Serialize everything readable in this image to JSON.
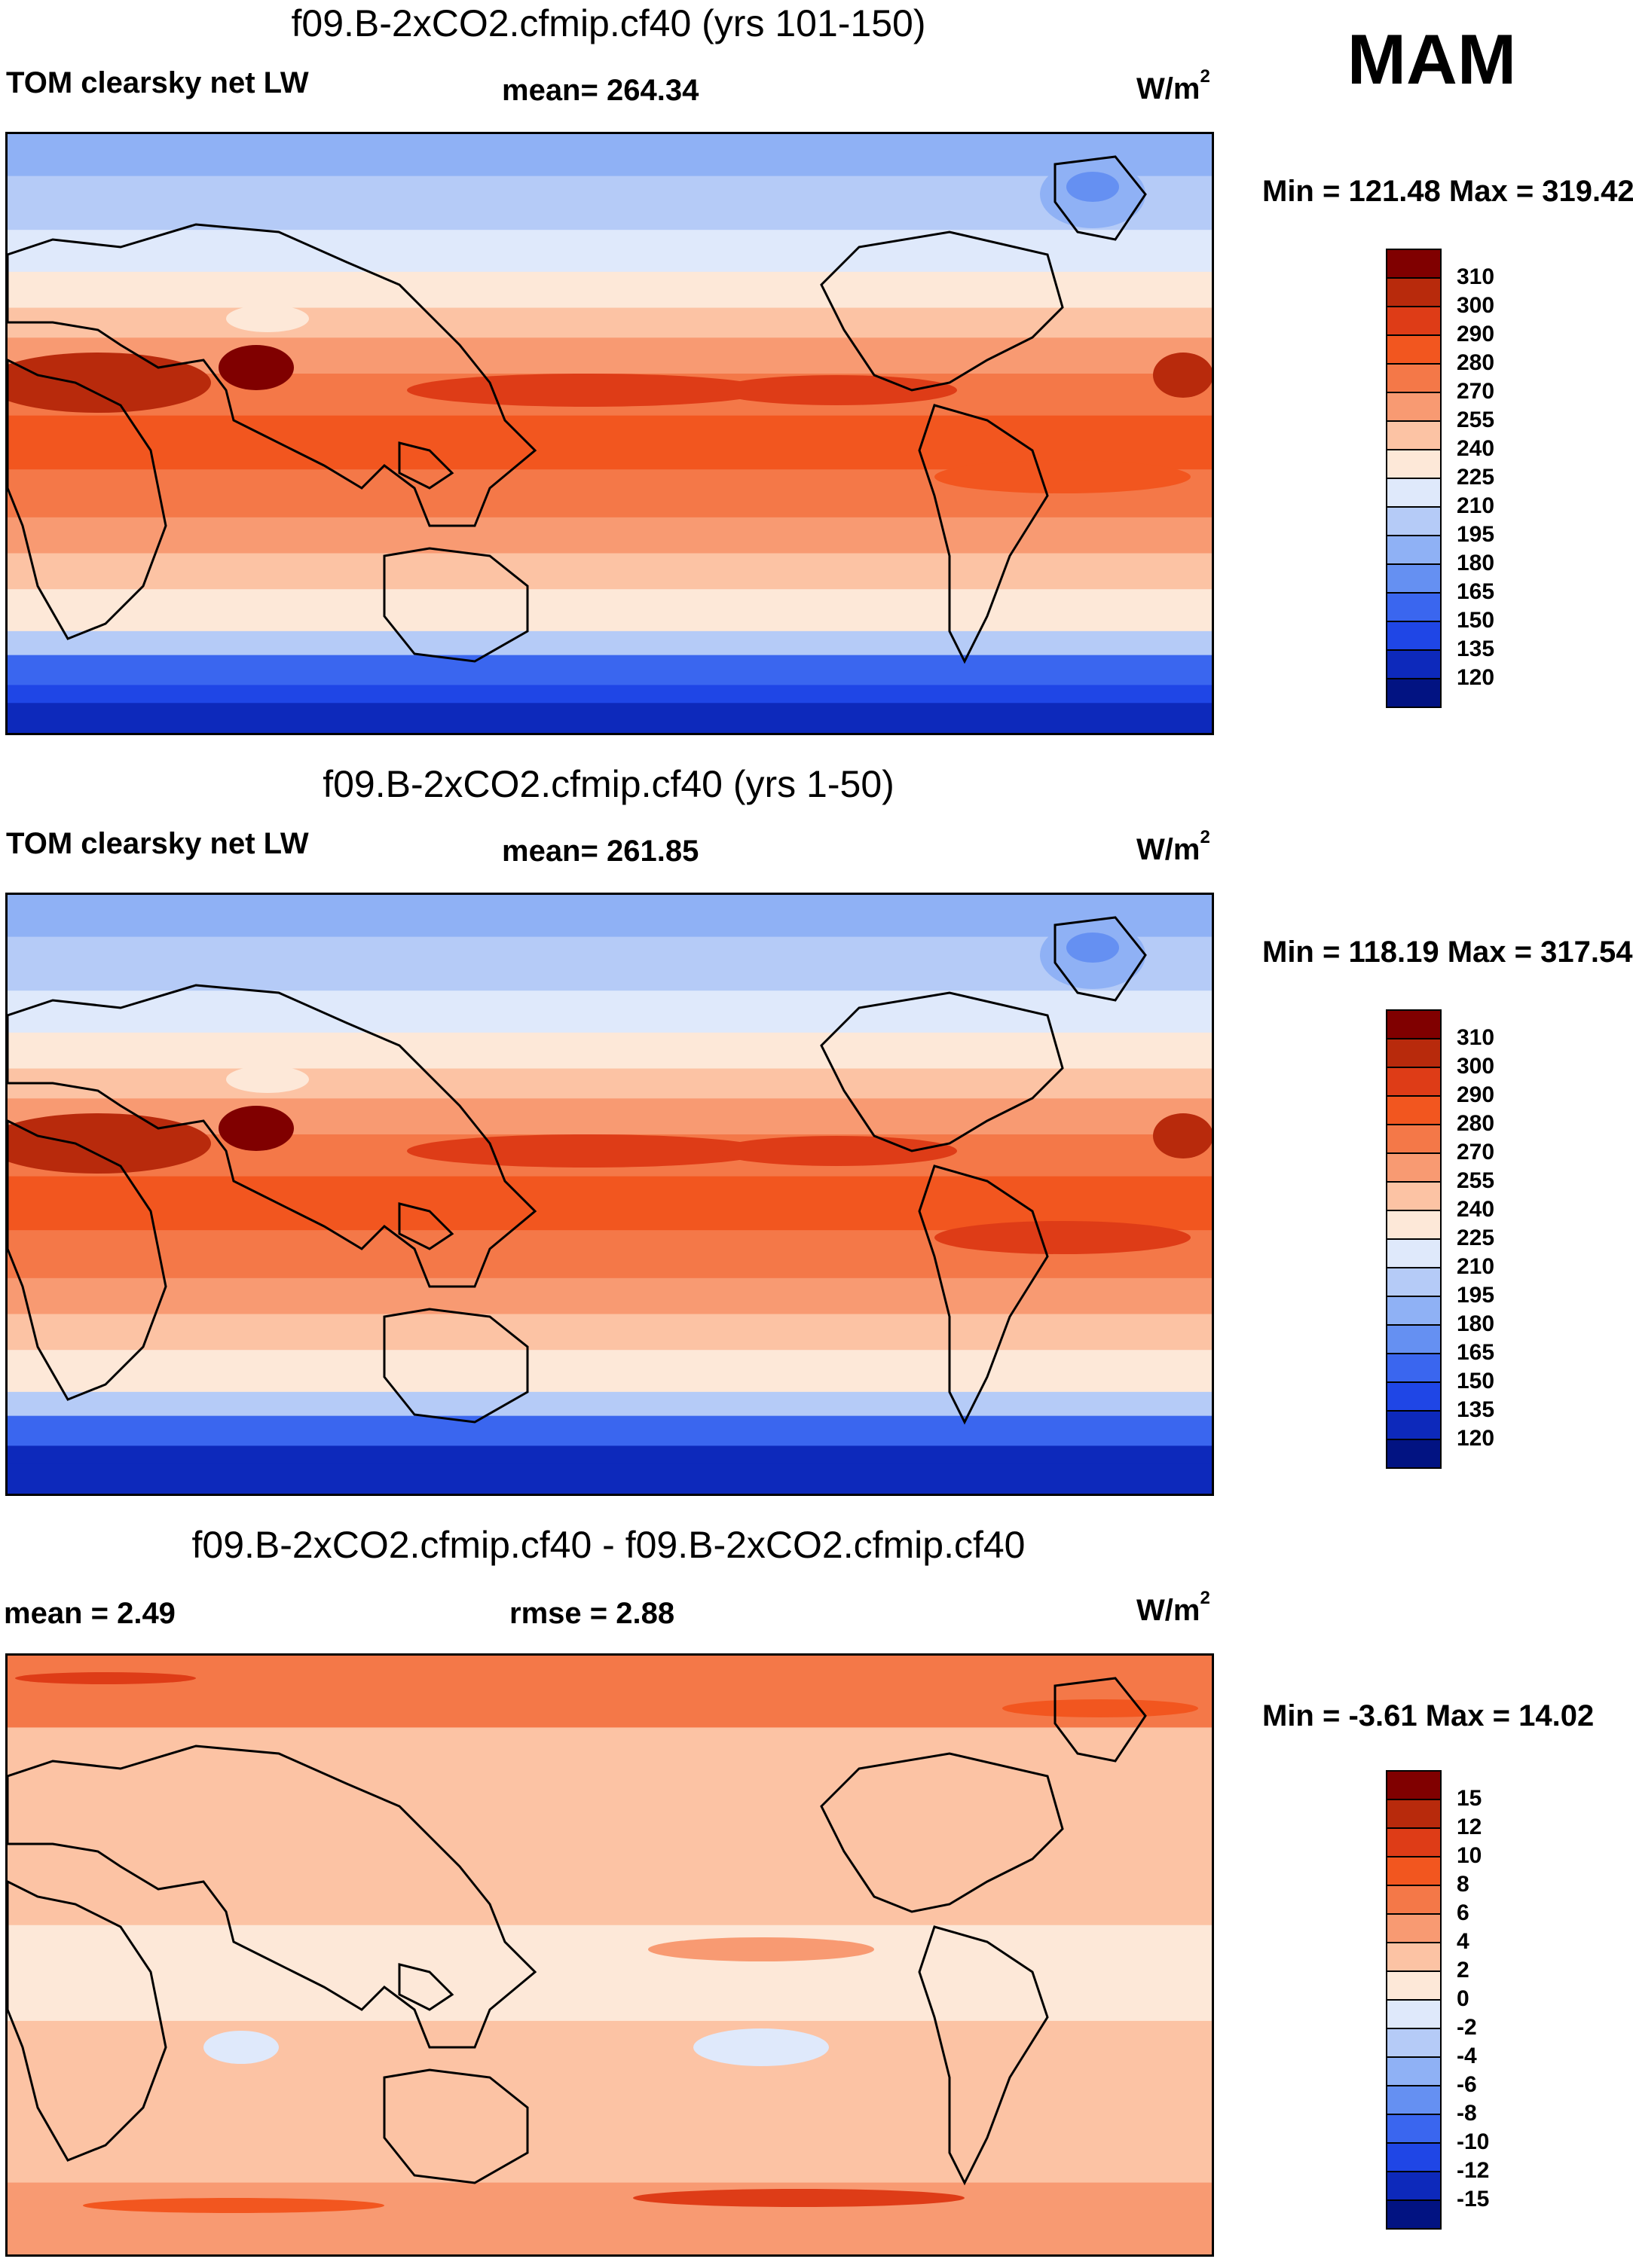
{
  "figure": {
    "season": "MAM",
    "units_label": "W/m",
    "units_sup": "2"
  },
  "chart_data": [
    {
      "type": "heatmap",
      "title": "f09.B-2xCO2.cfmip.cf40 (yrs 101-150)",
      "left_label": "TOM clearsky net LW",
      "stat_text": "mean= 264.34",
      "mean": 264.34,
      "min_max_text": "Min = 121.48 Max = 319.42",
      "min": 121.48,
      "max": 319.42,
      "colorbar_levels": [
        "310",
        "300",
        "290",
        "280",
        "270",
        "255",
        "240",
        "225",
        "210",
        "195",
        "180",
        "165",
        "150",
        "135",
        "120"
      ],
      "colorbar_colors": [
        "#800000",
        "#b82a0c",
        "#de3c17",
        "#f2561f",
        "#f47848",
        "#f89a72",
        "#fcc3a4",
        "#fde8d8",
        "#dfe9fb",
        "#b5cbf7",
        "#8fb1f5",
        "#6590f2",
        "#3a66ef",
        "#1f46e6",
        "#0d29bb",
        "#021382"
      ],
      "xlabel": "",
      "ylabel": ""
    },
    {
      "type": "heatmap",
      "title": "f09.B-2xCO2.cfmip.cf40 (yrs 1-50)",
      "left_label": "TOM clearsky net LW",
      "stat_text": "mean= 261.85",
      "mean": 261.85,
      "min_max_text": "Min = 118.19 Max = 317.54",
      "min": 118.19,
      "max": 317.54,
      "colorbar_levels": [
        "310",
        "300",
        "290",
        "280",
        "270",
        "255",
        "240",
        "225",
        "210",
        "195",
        "180",
        "165",
        "150",
        "135",
        "120"
      ],
      "colorbar_colors": [
        "#800000",
        "#b82a0c",
        "#de3c17",
        "#f2561f",
        "#f47848",
        "#f89a72",
        "#fcc3a4",
        "#fde8d8",
        "#dfe9fb",
        "#b5cbf7",
        "#8fb1f5",
        "#6590f2",
        "#3a66ef",
        "#1f46e6",
        "#0d29bb",
        "#021382"
      ],
      "xlabel": "",
      "ylabel": ""
    },
    {
      "type": "heatmap",
      "title": "f09.B-2xCO2.cfmip.cf40 - f09.B-2xCO2.cfmip.cf40",
      "left_label": "mean =   2.49",
      "mean": 2.49,
      "stat_text": "rmse =   2.88",
      "rmse": 2.88,
      "min_max_text": "Min =  -3.61 Max =  14.02",
      "min": -3.61,
      "max": 14.02,
      "colorbar_levels": [
        "15",
        "12",
        "10",
        "8",
        "6",
        "4",
        "2",
        "0",
        "-2",
        "-4",
        "-6",
        "-8",
        "-10",
        "-12",
        "-15"
      ],
      "colorbar_colors": [
        "#800000",
        "#b82a0c",
        "#de3c17",
        "#f2561f",
        "#f47848",
        "#f89a72",
        "#fcc3a4",
        "#fde8d8",
        "#dfe9fb",
        "#b5cbf7",
        "#8fb1f5",
        "#6590f2",
        "#3a66ef",
        "#1f46e6",
        "#0d29bb",
        "#021382"
      ],
      "xlabel": "",
      "ylabel": ""
    }
  ]
}
